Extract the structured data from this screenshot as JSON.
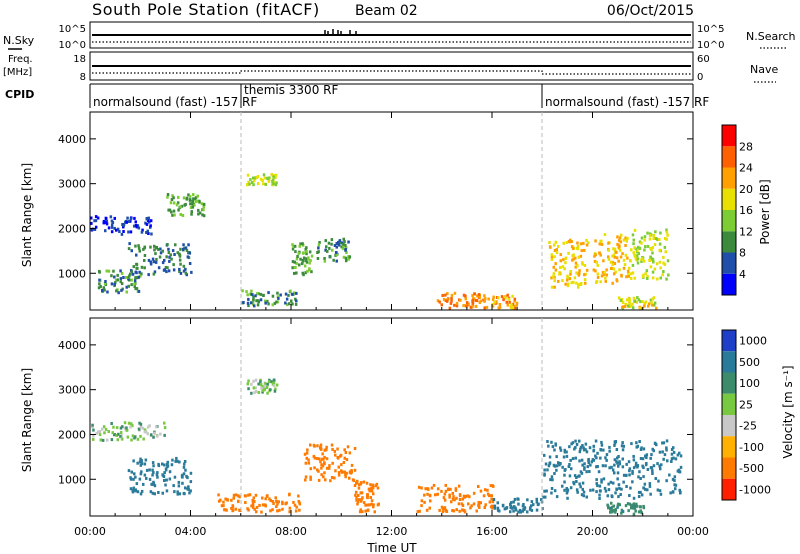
{
  "header": {
    "station": "South Pole Station (fitACF)",
    "beam": "Beam 02",
    "date": "06/Oct/2015"
  },
  "strips": {
    "nsky_label": "N.Sky",
    "nsky_ticks": [
      "10^5",
      "10^0"
    ],
    "nsearch_label": "N.Search",
    "nsearch_ticks": [
      "10^5",
      "10^0"
    ],
    "freq_label": "Freq.",
    "freq_unit": "[MHz]",
    "freq_ticks": [
      "18",
      "8"
    ],
    "nave_label": "Nave",
    "nave_ticks": [
      "60",
      "0"
    ],
    "cpid_label": "CPID",
    "cpid_segments": [
      {
        "label": "normalsound (fast) -157 RF",
        "start": 0,
        "end": 6
      },
      {
        "label": "themis 3300 RF",
        "start": 6,
        "end": 18
      },
      {
        "label": "normalsound (fast) -157 RF",
        "start": 18,
        "end": 24
      }
    ]
  },
  "power_panel": {
    "ylabel": "Slant Range [km]",
    "yticks": [
      "4000",
      "3000",
      "2000",
      "1000"
    ],
    "colorbar_label": "Power [dB]",
    "colorbar_ticks": [
      "28",
      "24",
      "20",
      "16",
      "12",
      "8",
      "4"
    ],
    "colors": [
      "#0000ff",
      "#1f4fa8",
      "#3c8a3c",
      "#7ccc33",
      "#e8e000",
      "#ffa000",
      "#ff6000",
      "#ff0000"
    ]
  },
  "velocity_panel": {
    "ylabel": "Slant Range [km]",
    "yticks": [
      "4000",
      "3000",
      "2000",
      "1000"
    ],
    "colorbar_label": "Velocity [m s⁻¹]",
    "colorbar_ticks": [
      "1000",
      "500",
      "100",
      "25",
      "-25",
      "-100",
      "-500",
      "-1000"
    ],
    "colors": [
      "#1f3fc8",
      "#2a7a9a",
      "#3c8c6c",
      "#78c840",
      "#c8c8c8",
      "#ffb000",
      "#ff7a00",
      "#ff2000"
    ]
  },
  "xaxis": {
    "label": "Time UT",
    "ticks": [
      "00:00",
      "04:00",
      "08:00",
      "12:00",
      "16:00",
      "20:00",
      "00:00"
    ]
  },
  "chart_data": {
    "type": "heatmap",
    "title": "South Pole Station (fitACF)",
    "xlabel": "Time UT",
    "ylabel": "Slant Range [km]",
    "xlim": [
      0,
      24
    ],
    "ylim": [
      180,
      4600
    ],
    "x_unit": "hours UT",
    "dashed_lines_at": [
      6,
      18
    ],
    "power_regions": [
      {
        "t0": 0.0,
        "t1": 2.5,
        "r0": 1900,
        "r1": 2300,
        "power": 6
      },
      {
        "t0": 1.5,
        "t1": 4.0,
        "r0": 1000,
        "r1": 1700,
        "power": 10
      },
      {
        "t0": 3.0,
        "t1": 4.5,
        "r0": 2300,
        "r1": 2800,
        "power": 14
      },
      {
        "t0": 0.3,
        "t1": 2.0,
        "r0": 600,
        "r1": 1100,
        "power": 12
      },
      {
        "t0": 6.2,
        "t1": 7.4,
        "r0": 3000,
        "r1": 3250,
        "power": 18
      },
      {
        "t0": 8.0,
        "t1": 8.8,
        "r0": 1000,
        "r1": 1700,
        "power": 14
      },
      {
        "t0": 9.0,
        "t1": 10.3,
        "r0": 1300,
        "r1": 1800,
        "power": 12
      },
      {
        "t0": 6.0,
        "t1": 8.2,
        "r0": 300,
        "r1": 650,
        "power": 12
      },
      {
        "t0": 13.8,
        "t1": 15.5,
        "r0": 250,
        "r1": 600,
        "power": 26
      },
      {
        "t0": 15.5,
        "t1": 17.0,
        "r0": 250,
        "r1": 550,
        "power": 24
      },
      {
        "t0": 18.2,
        "t1": 19.8,
        "r0": 700,
        "r1": 1800,
        "power": 22
      },
      {
        "t0": 20.0,
        "t1": 21.5,
        "r0": 800,
        "r1": 1900,
        "power": 22
      },
      {
        "t0": 21.5,
        "t1": 23.0,
        "r0": 900,
        "r1": 2000,
        "power": 18
      },
      {
        "t0": 21.0,
        "t1": 22.5,
        "r0": 250,
        "r1": 500,
        "power": 20
      }
    ],
    "velocity_regions": [
      {
        "t0": 0.0,
        "t1": 3.0,
        "r0": 1900,
        "r1": 2300,
        "velocity": 10
      },
      {
        "t0": 1.5,
        "t1": 4.0,
        "r0": 700,
        "r1": 1500,
        "velocity": 150
      },
      {
        "t0": 6.2,
        "t1": 7.4,
        "r0": 2950,
        "r1": 3250,
        "velocity": 10
      },
      {
        "t0": 5.0,
        "t1": 8.5,
        "r0": 300,
        "r1": 700,
        "velocity": -200
      },
      {
        "t0": 8.5,
        "t1": 10.5,
        "r0": 1000,
        "r1": 1800,
        "velocity": -200
      },
      {
        "t0": 10.5,
        "t1": 11.5,
        "r0": 300,
        "r1": 1000,
        "velocity": -150
      },
      {
        "t0": 13.0,
        "t1": 16.0,
        "r0": 300,
        "r1": 900,
        "velocity": -200
      },
      {
        "t0": 16.0,
        "t1": 18.0,
        "r0": 300,
        "r1": 600,
        "velocity": 150
      },
      {
        "t0": 18.0,
        "t1": 23.5,
        "r0": 600,
        "r1": 1900,
        "velocity": 150
      },
      {
        "t0": 20.5,
        "t1": 22.0,
        "r0": 250,
        "r1": 500,
        "velocity": 80
      }
    ]
  }
}
